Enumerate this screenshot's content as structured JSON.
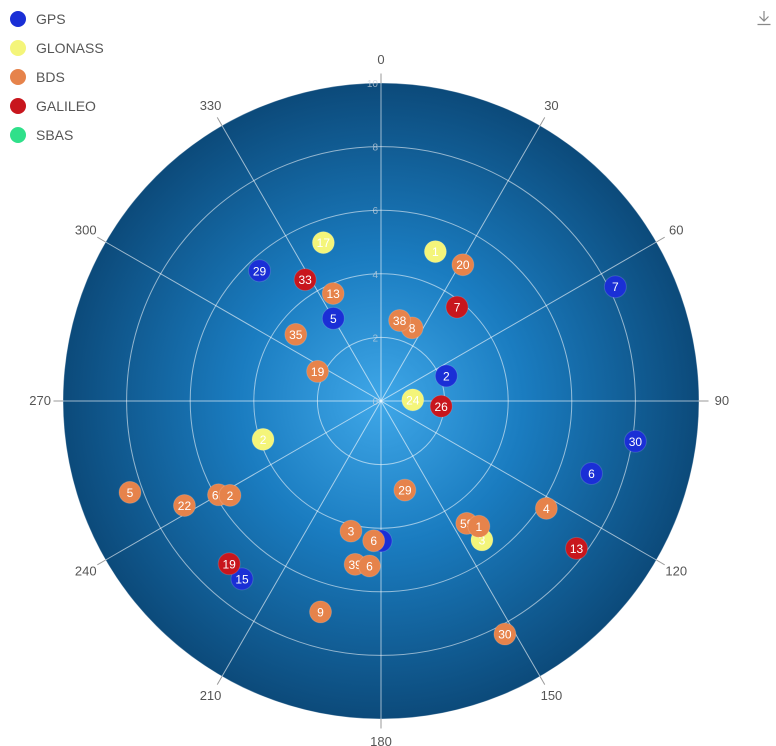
{
  "chart_data": {
    "type": "polar-scatter",
    "angle_axis": {
      "labels": [
        "0",
        "30",
        "60",
        "90",
        "120",
        "150",
        "180",
        "210",
        "240",
        "270",
        "300",
        "330"
      ],
      "direction": "clockwise",
      "zero": "top"
    },
    "radius_axis": {
      "ticks": [
        "0",
        "2",
        "4",
        "6",
        "8",
        "10"
      ],
      "range": [
        0,
        10
      ]
    },
    "legend_position": "top-left",
    "series": [
      {
        "name": "GPS",
        "color": "#1a2fd6",
        "points": [
          {
            "label": "29",
            "r": 5.6,
            "theta": 317
          },
          {
            "label": "5",
            "r": 3.0,
            "theta": 330
          },
          {
            "label": "7",
            "r": 8.2,
            "theta": 64
          },
          {
            "label": "2",
            "r": 2.2,
            "theta": 69
          },
          {
            "label": "30",
            "r": 8.1,
            "theta": 99
          },
          {
            "label": "6",
            "r": 7.0,
            "theta": 109
          },
          {
            "label": "3",
            "r": 4.4,
            "theta": 180
          },
          {
            "label": "15",
            "r": 7.1,
            "theta": 218
          }
        ]
      },
      {
        "name": "GLONASS",
        "color": "#f4f57a",
        "points": [
          {
            "label": "17",
            "r": 5.3,
            "theta": 340
          },
          {
            "label": "1",
            "r": 5.0,
            "theta": 20
          },
          {
            "label": "24",
            "r": 1.0,
            "theta": 88
          },
          {
            "label": "2",
            "r": 3.9,
            "theta": 252
          },
          {
            "label": "3",
            "r": 5.4,
            "theta": 144
          }
        ]
      },
      {
        "name": "BDS",
        "color": "#e6834b",
        "points": [
          {
            "label": "13",
            "r": 3.7,
            "theta": 336
          },
          {
            "label": "35",
            "r": 3.4,
            "theta": 308
          },
          {
            "label": "19",
            "r": 2.2,
            "theta": 295
          },
          {
            "label": "20",
            "r": 5.0,
            "theta": 31
          },
          {
            "label": "8",
            "r": 2.5,
            "theta": 23
          },
          {
            "label": "38",
            "r": 2.6,
            "theta": 13
          },
          {
            "label": "5",
            "r": 8.4,
            "theta": 250
          },
          {
            "label": "22",
            "r": 7.0,
            "theta": 242
          },
          {
            "label": "60",
            "r": 5.9,
            "theta": 240
          },
          {
            "label": "2",
            "r": 5.6,
            "theta": 238
          },
          {
            "label": "29",
            "r": 2.9,
            "theta": 165
          },
          {
            "label": "3",
            "r": 4.2,
            "theta": 193
          },
          {
            "label": "6",
            "r": 4.4,
            "theta": 183
          },
          {
            "label": "39",
            "r": 5.2,
            "theta": 189
          },
          {
            "label": "6",
            "r": 5.2,
            "theta": 184
          },
          {
            "label": "9",
            "r": 6.9,
            "theta": 196
          },
          {
            "label": "59",
            "r": 4.7,
            "theta": 145
          },
          {
            "label": "1",
            "r": 5.0,
            "theta": 142
          },
          {
            "label": "4",
            "r": 6.2,
            "theta": 123
          },
          {
            "label": "30",
            "r": 8.3,
            "theta": 152
          }
        ]
      },
      {
        "name": "GALILEO",
        "color": "#c8161d",
        "points": [
          {
            "label": "33",
            "r": 4.5,
            "theta": 328
          },
          {
            "label": "7",
            "r": 3.8,
            "theta": 39
          },
          {
            "label": "26",
            "r": 1.9,
            "theta": 95
          },
          {
            "label": "13",
            "r": 7.7,
            "theta": 127
          },
          {
            "label": "19",
            "r": 7.0,
            "theta": 223
          }
        ]
      },
      {
        "name": "SBAS",
        "color": "#2fe08a",
        "points": []
      }
    ]
  },
  "legend": [
    {
      "name": "GPS",
      "color": "#1a2fd6"
    },
    {
      "name": "GLONASS",
      "color": "#f4f57a"
    },
    {
      "name": "BDS",
      "color": "#e6834b"
    },
    {
      "name": "GALILEO",
      "color": "#c8161d"
    },
    {
      "name": "SBAS",
      "color": "#2fe08a"
    }
  ],
  "toolbar": {
    "download_icon": "download-icon"
  }
}
